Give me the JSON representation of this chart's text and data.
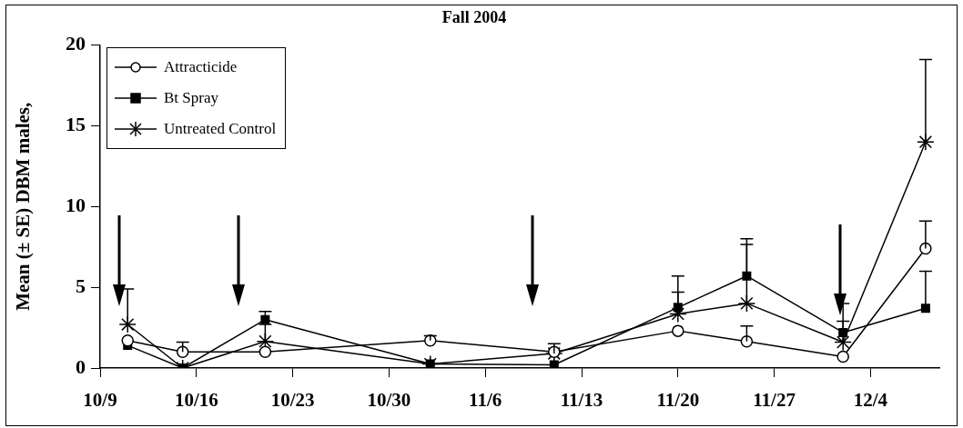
{
  "chart_data": {
    "type": "line",
    "title": "Fall 2004",
    "ylabel": "Mean (± SE) DBM males,",
    "x": [
      "--10-11",
      "--10-15",
      "--10-21",
      "--11-02",
      "--11-11",
      "--11-20",
      "--11-25",
      "--12-02",
      "--12-08"
    ],
    "series": [
      {
        "name": "Attracticide",
        "color": "#000000",
        "marker": "circle",
        "values": [
          1.7,
          1.0,
          1.0,
          1.7,
          1.0,
          2.3,
          1.65,
          0.7,
          7.4
        ],
        "errors": [
          null,
          [
            1.0,
            1.6
          ],
          null,
          [
            1.7,
            2.0
          ],
          null,
          null,
          [
            1.65,
            2.6
          ],
          null,
          [
            7.4,
            9.1
          ]
        ]
      },
      {
        "name": "Bt Spray",
        "color": "#000000",
        "marker": "square",
        "values": [
          1.4,
          0,
          3.0,
          0.25,
          0.2,
          3.75,
          5.7,
          2.2,
          3.7
        ],
        "errors": [
          null,
          null,
          [
            3.0,
            3.5
          ],
          null,
          null,
          [
            3.75,
            5.7
          ],
          [
            5.7,
            8.0
          ],
          [
            2.2,
            4.0
          ],
          [
            3.7,
            6.0
          ]
        ]
      },
      {
        "name": "Untreated Control",
        "color": "#000000",
        "marker": "cross",
        "values": [
          2.7,
          0,
          1.65,
          0.25,
          0.9,
          3.35,
          4.0,
          1.6,
          14.0
        ],
        "errors": [
          [
            2.7,
            4.9
          ],
          null,
          [
            1.65,
            2.7
          ],
          null,
          [
            0.9,
            1.5
          ],
          [
            3.35,
            4.7
          ],
          [
            4.0,
            7.65
          ],
          [
            1.6,
            2.9
          ],
          [
            14.0,
            19.1
          ]
        ]
      }
    ],
    "xlim": [
      "--10-09",
      "--12-09"
    ],
    "xticks": [
      {
        "value": "--10-09",
        "label": "10/9"
      },
      {
        "value": "--10-16",
        "label": "10/16"
      },
      {
        "value": "--10-23",
        "label": "10/23"
      },
      {
        "value": "--10-30",
        "label": "10/30"
      },
      {
        "value": "--11-06",
        "label": "11/6"
      },
      {
        "value": "--11-13",
        "label": "11/13"
      },
      {
        "value": "--11-20",
        "label": "11/20"
      },
      {
        "value": "--11-27",
        "label": "11/27"
      },
      {
        "value": "--12-04",
        "label": "12/4"
      }
    ],
    "ylim": [
      0,
      20
    ],
    "yticks": [
      0,
      5,
      10,
      15,
      20
    ],
    "grid": false,
    "legend": "top left"
  }
}
